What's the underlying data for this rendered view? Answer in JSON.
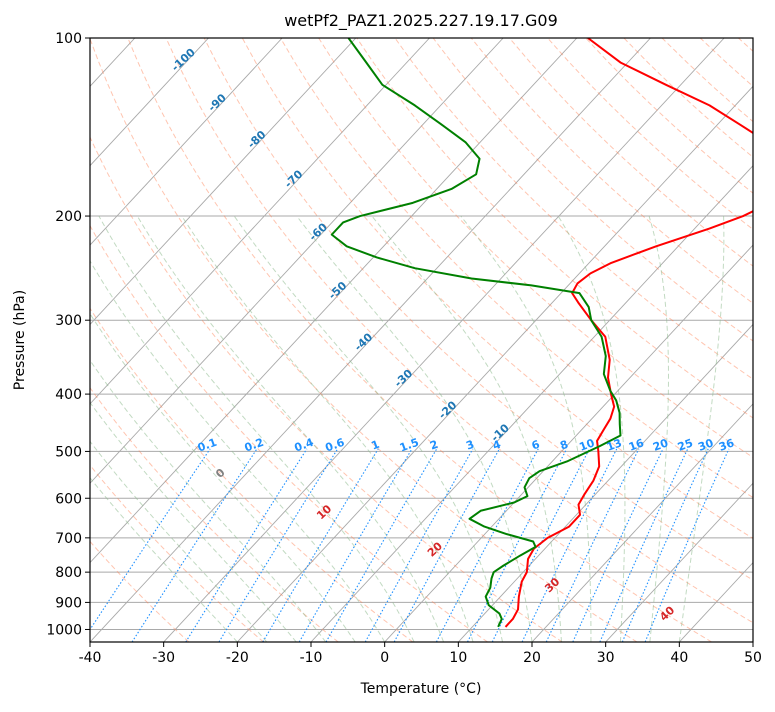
{
  "chart_data": {
    "type": "line",
    "title": "wetPf2_PAZ1.2025.227.19.17.G09",
    "xlabel": "Temperature (°C)",
    "ylabel": "Pressure (hPa)",
    "xlim": [
      -40,
      50
    ],
    "ylim": [
      1050,
      100
    ],
    "y_scale": "log",
    "grid": true,
    "x_ticks": [
      -40,
      -30,
      -20,
      -10,
      0,
      10,
      20,
      30,
      40,
      50
    ],
    "y_ticks": [
      1000,
      900,
      800,
      700,
      600,
      500,
      400,
      300,
      200,
      100
    ],
    "skew": true,
    "colors": {
      "temperature": "#ff0000",
      "dewpoint": "#008000",
      "dry_adiabat": "#ff7f50",
      "moist_adiabat": "#8fbc8f",
      "mixing_ratio": "#1e90ff",
      "isotherm": "#a9a9a9",
      "isotherm_label": "#1f77b4",
      "lcl": "#d2b48c",
      "theta_label": "#d62728",
      "grid": "#a9a9a9"
    },
    "isotherm_labels": [
      "-100",
      "-90",
      "-80",
      "-70",
      "-60",
      "-50",
      "-40",
      "-30",
      "-20",
      "-10"
    ],
    "isotherm_label_values": [
      -100,
      -90,
      -80,
      -70,
      -60,
      -50,
      -40,
      -30,
      -20,
      -10
    ],
    "mixing_ratio_labels": [
      "0.1",
      "0.2",
      "0.4",
      "0.6",
      "1",
      "1.5",
      "2",
      "3",
      "4",
      "6",
      "8",
      "10",
      "13",
      "16",
      "20",
      "25",
      "30",
      "36"
    ],
    "mixing_ratio_values": [
      0.1,
      0.2,
      0.4,
      0.6,
      1,
      1.5,
      2,
      3,
      4,
      6,
      8,
      10,
      13,
      16,
      20,
      25,
      30,
      36
    ],
    "theta_labels": [
      "0",
      "10",
      "20",
      "30",
      "40"
    ],
    "theta_label_values": [
      0,
      10,
      20,
      30,
      40
    ],
    "theta_label_pressures": [
      550,
      640,
      740,
      850,
      950
    ],
    "series": [
      {
        "type": "temperature",
        "points": [
          [
            14.5,
            990
          ],
          [
            14.5,
            960
          ],
          [
            14.0,
            925
          ],
          [
            12.5,
            880
          ],
          [
            11.0,
            830
          ],
          [
            10.5,
            800
          ],
          [
            9.0,
            760
          ],
          [
            8.5,
            730
          ],
          [
            9.0,
            700
          ],
          [
            10.5,
            670
          ],
          [
            10.5,
            640
          ],
          [
            9.0,
            615
          ],
          [
            8.5,
            590
          ],
          [
            8.0,
            560
          ],
          [
            7.0,
            530
          ],
          [
            5.0,
            500
          ],
          [
            3.5,
            480
          ],
          [
            3.0,
            460
          ],
          [
            2.5,
            440
          ],
          [
            1.5,
            420
          ],
          [
            -0.5,
            400
          ],
          [
            -3.0,
            375
          ],
          [
            -5.0,
            350
          ],
          [
            -8.5,
            320
          ],
          [
            -12.5,
            300
          ],
          [
            -16.5,
            280
          ],
          [
            -18.5,
            270
          ],
          [
            -19.0,
            260
          ],
          [
            -18.5,
            250
          ],
          [
            -17.0,
            240
          ],
          [
            -13.0,
            225
          ],
          [
            -8.0,
            210
          ],
          [
            -5.0,
            200
          ],
          [
            -3.0,
            190
          ],
          [
            -3.0,
            180
          ],
          [
            -4.5,
            170
          ],
          [
            -7.0,
            160
          ],
          [
            -11.0,
            150
          ],
          [
            -17.0,
            140
          ],
          [
            -23.5,
            130
          ],
          [
            -32.0,
            120
          ],
          [
            -41.0,
            110
          ],
          [
            -48.5,
            100
          ]
        ]
      },
      {
        "type": "dewpoint",
        "points": [
          [
            13.5,
            990
          ],
          [
            13.0,
            960
          ],
          [
            12.0,
            940
          ],
          [
            9.5,
            910
          ],
          [
            8.0,
            880
          ],
          [
            7.5,
            850
          ],
          [
            6.5,
            820
          ],
          [
            6.0,
            800
          ],
          [
            6.5,
            780
          ],
          [
            7.5,
            750
          ],
          [
            8.5,
            725
          ],
          [
            7.5,
            710
          ],
          [
            3.0,
            690
          ],
          [
            -1.0,
            670
          ],
          [
            -4.0,
            650
          ],
          [
            -3.5,
            630
          ],
          [
            0.0,
            610
          ],
          [
            1.0,
            595
          ],
          [
            -0.5,
            575
          ],
          [
            -1.0,
            555
          ],
          [
            -0.5,
            540
          ],
          [
            2.0,
            520
          ],
          [
            4.5,
            490
          ],
          [
            6.0,
            470
          ],
          [
            4.5,
            450
          ],
          [
            3.0,
            430
          ],
          [
            1.0,
            410
          ],
          [
            -1.0,
            395
          ],
          [
            -4.0,
            370
          ],
          [
            -6.0,
            345
          ],
          [
            -9.0,
            320
          ],
          [
            -12.5,
            300
          ],
          [
            -14.5,
            285
          ],
          [
            -17.5,
            270
          ],
          [
            -25.0,
            262
          ],
          [
            -34.0,
            255
          ],
          [
            -43.0,
            245
          ],
          [
            -49.5,
            235
          ],
          [
            -55.0,
            225
          ],
          [
            -58.5,
            215
          ],
          [
            -58.5,
            205
          ],
          [
            -57.0,
            200
          ],
          [
            -51.5,
            190
          ],
          [
            -48.0,
            180
          ],
          [
            -46.5,
            170
          ],
          [
            -48.0,
            160
          ],
          [
            -52.0,
            150
          ],
          [
            -57.5,
            140
          ],
          [
            -63.5,
            130
          ],
          [
            -70.5,
            120
          ],
          [
            -75.5,
            110
          ],
          [
            -81.0,
            100
          ]
        ]
      }
    ]
  }
}
